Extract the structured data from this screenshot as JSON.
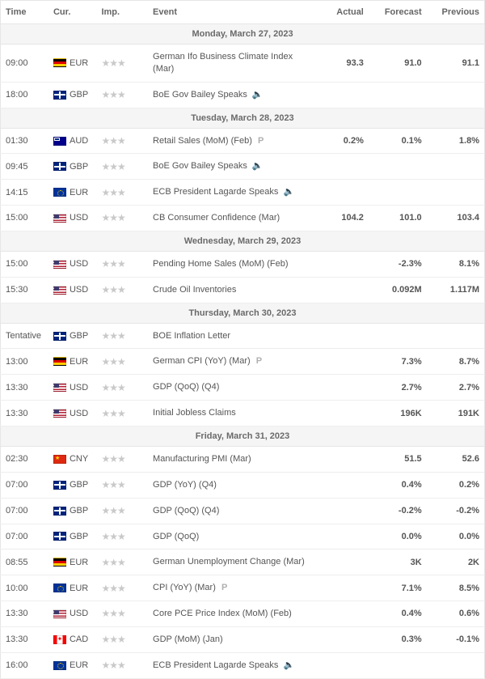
{
  "columns": {
    "time": "Time",
    "cur": "Cur.",
    "imp": "Imp.",
    "event": "Event",
    "actual": "Actual",
    "forecast": "Forecast",
    "previous": "Previous"
  },
  "glyphs": {
    "speaker": "🔈",
    "prelim": "P"
  },
  "colors": {
    "positive": "#2e9e3f",
    "negative": "#d93a3a",
    "text": "#555555",
    "header_bg": "#f5f5f5",
    "border": "#e6e6e6"
  },
  "flag_for_currency": {
    "EUR_de": "de",
    "EUR_eu": "eu",
    "GBP": "gb",
    "AUD": "au",
    "USD": "us",
    "CNY": "cn",
    "CAD": "ca"
  },
  "days": [
    {
      "label": "Monday, March 27, 2023",
      "rows": [
        {
          "time": "09:00",
          "flag": "de",
          "cur": "EUR",
          "stars": 3,
          "event": "German Ifo Business Climate Index (Mar)",
          "actual": "93.3",
          "actual_color": "green",
          "forecast": "91.0",
          "previous": "91.1"
        },
        {
          "time": "18:00",
          "flag": "gb",
          "cur": "GBP",
          "stars": 3,
          "event": "BoE Gov Bailey Speaks",
          "speaker": true
        }
      ]
    },
    {
      "label": "Tuesday, March 28, 2023",
      "rows": [
        {
          "time": "01:30",
          "flag": "au",
          "cur": "AUD",
          "stars": 3,
          "event": "Retail Sales (MoM) (Feb)",
          "prelim": true,
          "actual": "0.2%",
          "actual_color": "green",
          "forecast": "0.1%",
          "previous": "1.8%",
          "previous_color": "red"
        },
        {
          "time": "09:45",
          "flag": "gb",
          "cur": "GBP",
          "stars": 3,
          "event": "BoE Gov Bailey Speaks",
          "speaker": true
        },
        {
          "time": "14:15",
          "flag": "eu",
          "cur": "EUR",
          "stars": 3,
          "event": "ECB President Lagarde Speaks",
          "speaker": true
        },
        {
          "time": "15:00",
          "flag": "us",
          "cur": "USD",
          "stars": 3,
          "event": "CB Consumer Confidence (Mar)",
          "actual": "104.2",
          "actual_color": "green",
          "forecast": "101.0",
          "previous": "103.4",
          "previous_color": "green"
        }
      ]
    },
    {
      "label": "Wednesday, March 29, 2023",
      "rows": [
        {
          "time": "15:00",
          "flag": "us",
          "cur": "USD",
          "stars": 3,
          "event": "Pending Home Sales (MoM) (Feb)",
          "forecast": "-2.3%",
          "previous": "8.1%"
        },
        {
          "time": "15:30",
          "flag": "us",
          "cur": "USD",
          "stars": 3,
          "event": "Crude Oil Inventories",
          "forecast": "0.092M",
          "previous": "1.117M"
        }
      ]
    },
    {
      "label": "Thursday, March 30, 2023",
      "rows": [
        {
          "time": "Tentative",
          "flag": "gb",
          "cur": "GBP",
          "stars": 3,
          "event": "BOE Inflation Letter"
        },
        {
          "time": "13:00",
          "flag": "de",
          "cur": "EUR",
          "stars": 3,
          "event": "German CPI (YoY) (Mar)",
          "prelim": true,
          "forecast": "7.3%",
          "previous": "8.7%"
        },
        {
          "time": "13:30",
          "flag": "us",
          "cur": "USD",
          "stars": 3,
          "event": "GDP (QoQ) (Q4)",
          "forecast": "2.7%",
          "previous": "2.7%",
          "previous_color": "red"
        },
        {
          "time": "13:30",
          "flag": "us",
          "cur": "USD",
          "stars": 3,
          "event": "Initial Jobless Claims",
          "forecast": "196K",
          "previous": "191K"
        }
      ]
    },
    {
      "label": "Friday, March 31, 2023",
      "rows": [
        {
          "time": "02:30",
          "flag": "cn",
          "cur": "CNY",
          "stars": 3,
          "event": "Manufacturing PMI (Mar)",
          "forecast": "51.5",
          "previous": "52.6"
        },
        {
          "time": "07:00",
          "flag": "gb",
          "cur": "GBP",
          "stars": 3,
          "event": "GDP (YoY) (Q4)",
          "forecast": "0.4%",
          "previous": "0.2%"
        },
        {
          "time": "07:00",
          "flag": "gb",
          "cur": "GBP",
          "stars": 3,
          "event": "GDP (QoQ) (Q4)",
          "forecast": "-0.2%",
          "previous": "-0.2%"
        },
        {
          "time": "07:00",
          "flag": "gb",
          "cur": "GBP",
          "stars": 3,
          "event": "GDP (QoQ)",
          "forecast": "0.0%",
          "previous": "0.0%"
        },
        {
          "time": "08:55",
          "flag": "de",
          "cur": "EUR",
          "stars": 3,
          "event": "German Unemployment Change (Mar)",
          "forecast": "3K",
          "previous": "2K"
        },
        {
          "time": "10:00",
          "flag": "eu",
          "cur": "EUR",
          "stars": 3,
          "event": "CPI (YoY) (Mar)",
          "prelim": true,
          "forecast": "7.1%",
          "previous": "8.5%"
        },
        {
          "time": "13:30",
          "flag": "us",
          "cur": "USD",
          "stars": 3,
          "event": "Core PCE Price Index (MoM) (Feb)",
          "forecast": "0.4%",
          "previous": "0.6%"
        },
        {
          "time": "13:30",
          "flag": "ca",
          "cur": "CAD",
          "stars": 3,
          "event": "GDP (MoM) (Jan)",
          "forecast": "0.3%",
          "previous": "-0.1%"
        },
        {
          "time": "16:00",
          "flag": "eu",
          "cur": "EUR",
          "stars": 3,
          "event": "ECB President Lagarde Speaks",
          "speaker": true
        }
      ]
    }
  ]
}
